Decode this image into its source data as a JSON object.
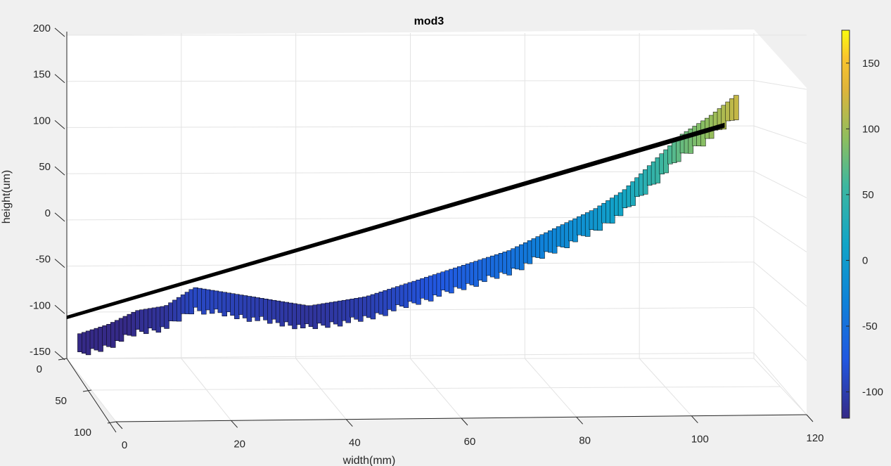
{
  "chart_data": {
    "type": "surface",
    "title": "mod3",
    "xlabel": "width(mm)",
    "ylabel": "",
    "zlabel": "height(um)",
    "xlim": [
      0,
      120
    ],
    "ylim": [
      0,
      100
    ],
    "zlim": [
      -150,
      200
    ],
    "x_ticks": [
      "0",
      "20",
      "40",
      "60",
      "80",
      "100",
      "120"
    ],
    "y_ticks": [
      "0",
      "50",
      "100"
    ],
    "z_ticks": [
      "200",
      "150",
      "100",
      "50",
      "0",
      "-50",
      "-100",
      "-150"
    ],
    "colorbar": {
      "colormap": "parula",
      "range": [
        -120,
        175
      ],
      "ticks": [
        "150",
        "100",
        "50",
        "0",
        "-50",
        "-100"
      ]
    },
    "reference_line": {
      "x": [
        0,
        120
      ],
      "z": [
        -85,
        110
      ]
    },
    "profile": {
      "x": [
        0,
        5,
        10,
        15,
        20,
        25,
        30,
        35,
        40,
        45,
        50,
        55,
        60,
        65,
        70,
        75,
        80,
        85,
        90,
        95,
        100,
        105,
        110,
        115,
        120
      ],
      "z": [
        -140,
        -130,
        -115,
        -110,
        -90,
        -95,
        -100,
        -105,
        -110,
        -105,
        -100,
        -90,
        -80,
        -70,
        -60,
        -50,
        -35,
        -20,
        -5,
        15,
        45,
        75,
        95,
        120,
        140
      ]
    }
  }
}
